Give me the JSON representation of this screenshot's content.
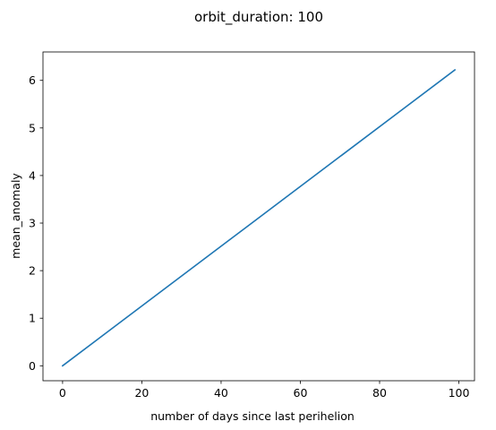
{
  "chart_data": {
    "type": "line",
    "title": "orbit_duration: 100",
    "xlabel": "number of days since last perihelion",
    "ylabel": "mean_anomaly",
    "xlim": [
      -4.95,
      103.95
    ],
    "ylim": [
      -0.3142,
      6.5973
    ],
    "xticks": [
      0,
      20,
      40,
      60,
      80,
      100
    ],
    "yticks": [
      0,
      1,
      2,
      3,
      4,
      5,
      6
    ],
    "grid": false,
    "legend": "none",
    "series": [
      {
        "x": [
          0,
          99
        ],
        "y": [
          0,
          6.2204
        ],
        "color": "#1f77b4"
      }
    ]
  }
}
